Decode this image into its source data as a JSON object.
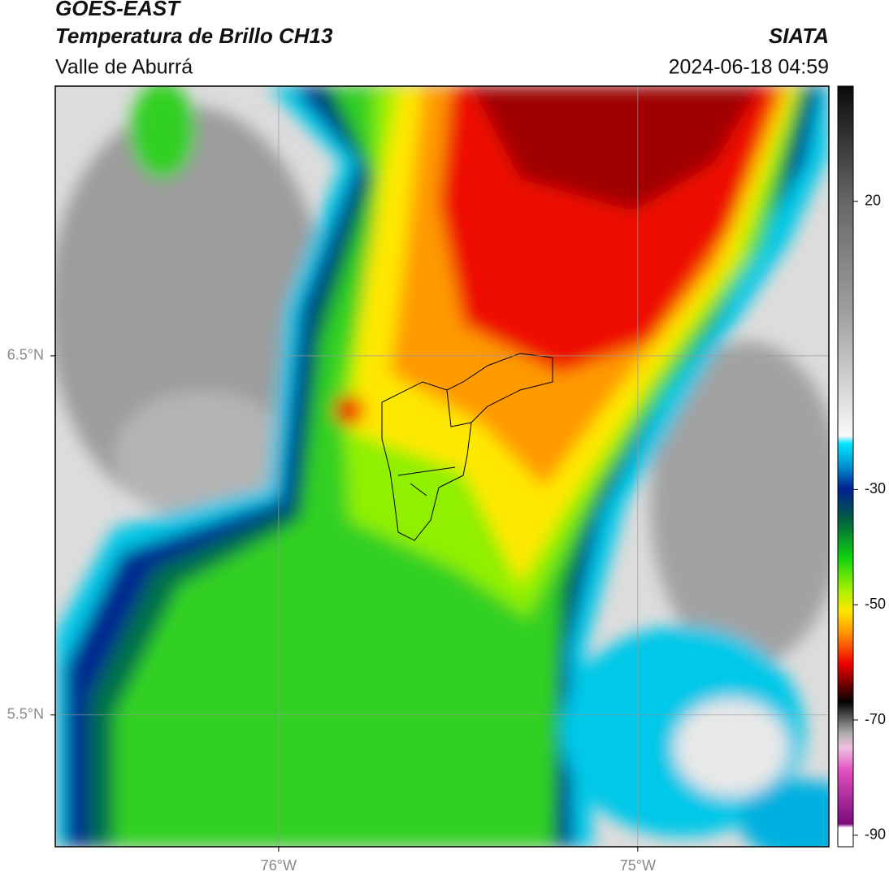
{
  "header": {
    "title": "GOES-EAST",
    "subtitle": "Temperatura de Brillo CH13",
    "region": "Valle de Aburrá",
    "source": "SIATA",
    "datetime": "2024-06-18 04:59"
  },
  "chart_data": {
    "type": "map",
    "xlim": [
      -76.622,
      -74.468
    ],
    "ylim": [
      5.133,
      7.251
    ],
    "xticks": [
      {
        "value": -76,
        "label": "76°W"
      },
      {
        "value": -75,
        "label": "75°W"
      }
    ],
    "yticks": [
      {
        "value": 6.5,
        "label": "6.5°N"
      },
      {
        "value": 5.5,
        "label": "5.5°N"
      }
    ],
    "grid": true,
    "colorbar": {
      "lim": [
        -92,
        40
      ],
      "ticks": [
        20,
        -30,
        -50,
        -70,
        -90
      ]
    }
  }
}
